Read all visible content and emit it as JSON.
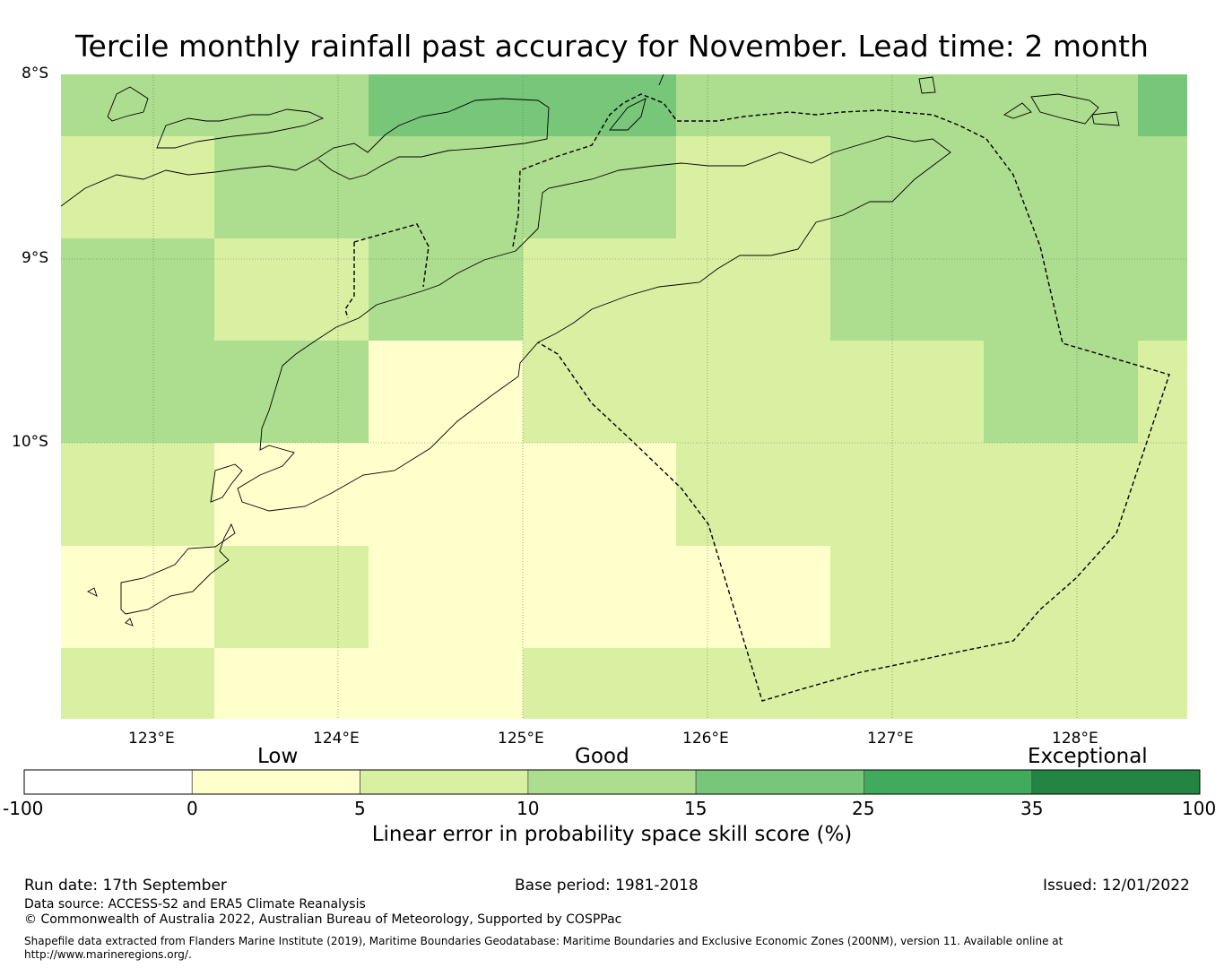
{
  "title": "Tercile monthly rainfall past accuracy for November. Lead time: 2 month",
  "map": {
    "lat_labels": [
      "8°S",
      "9°S",
      "10°S"
    ],
    "lon_labels": [
      "123°E",
      "124°E",
      "125°E",
      "126°E",
      "127°E",
      "128°E"
    ],
    "grid_scores_rows": [
      [
        10,
        10,
        15,
        15,
        10,
        10,
        10,
        15
      ],
      [
        5,
        10,
        10,
        10,
        5,
        10,
        10,
        10
      ],
      [
        10,
        5,
        10,
        5,
        5,
        10,
        10,
        10
      ],
      [
        10,
        10,
        0,
        5,
        5,
        5,
        10,
        5
      ],
      [
        5,
        0,
        0,
        0,
        5,
        5,
        5,
        5
      ],
      [
        0,
        5,
        0,
        0,
        0,
        5,
        5,
        5
      ],
      [
        5,
        0,
        0,
        5,
        5,
        5,
        5,
        5
      ]
    ]
  },
  "colorbar": {
    "categories": [
      "Low",
      "Good",
      "Exceptional"
    ],
    "ticks": [
      "-100",
      "0",
      "5",
      "10",
      "15",
      "25",
      "35",
      "100"
    ],
    "colors": [
      "#ffffff",
      "#ffffcc",
      "#d9f0a3",
      "#addd8e",
      "#78c679",
      "#41ab5d",
      "#238443"
    ],
    "label": "Linear error in probability space skill score (%)"
  },
  "footer": {
    "run_date": "Run date: 17th September",
    "base_period": "Base period: 1981-2018",
    "issued": "Issued: 12/01/2022",
    "data_source": "Data source: ACCESS-S2 and ERA5 Climate Reanalysis",
    "copyright": "© Commonwealth of Australia 2022, Australian Bureau of Meteorology, Supported by COSPPac",
    "shapefile": "Shapefile data extracted from Flanders Marine Institute (2019), Maritime Boundaries Geodatabase: Maritime Boundaries and Exclusive Economic Zones (200NM), version 11. Available online at http://www.marineregions.org/."
  }
}
